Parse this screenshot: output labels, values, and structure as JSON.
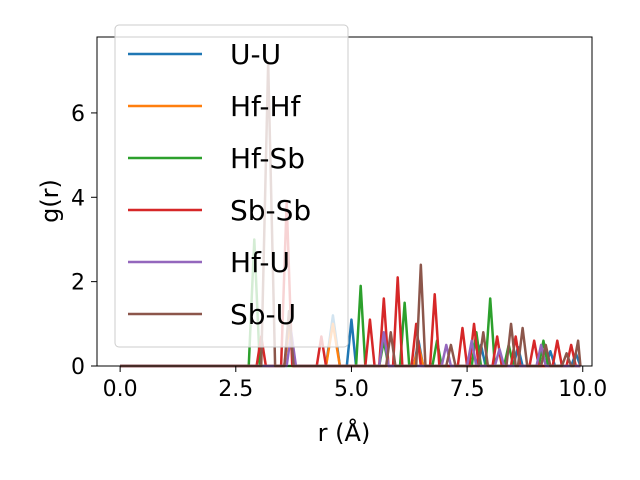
{
  "chart_data": {
    "type": "line",
    "xlabel": "r (Å)",
    "ylabel": "g(r)",
    "xlim": [
      -0.5,
      10.2
    ],
    "ylim": [
      0,
      7.8
    ],
    "xticks": [
      0.0,
      2.5,
      5.0,
      7.5,
      10.0
    ],
    "xtick_labels": [
      "0.0",
      "2.5",
      "5.0",
      "7.5",
      "10.0"
    ],
    "yticks": [
      0,
      2,
      4,
      6
    ],
    "ytick_labels": [
      "0",
      "2",
      "4",
      "6"
    ],
    "grid": false,
    "legend_position": "upper-left",
    "legend_labels": [
      "U-U",
      "Hf-Hf",
      "Hf-Sb",
      "Sb-Sb",
      "Hf-U",
      "Sb-U"
    ],
    "series": [
      {
        "name": "U-U",
        "color": "#1f77b4",
        "points": [
          [
            0,
            0
          ],
          [
            3.55,
            0
          ],
          [
            3.65,
            1.0
          ],
          [
            3.75,
            0
          ],
          [
            4.45,
            0
          ],
          [
            4.6,
            1.2
          ],
          [
            4.75,
            0
          ],
          [
            4.9,
            0
          ],
          [
            5.0,
            1.1
          ],
          [
            5.1,
            0
          ],
          [
            6.35,
            0
          ],
          [
            6.45,
            0.6
          ],
          [
            6.55,
            0
          ],
          [
            7.7,
            0
          ],
          [
            7.8,
            0.5
          ],
          [
            7.9,
            0
          ],
          [
            8.5,
            0
          ],
          [
            8.6,
            0.45
          ],
          [
            8.7,
            0
          ],
          [
            9.2,
            0
          ],
          [
            9.3,
            0.35
          ],
          [
            9.4,
            0
          ],
          [
            9.75,
            0
          ],
          [
            9.85,
            0.3
          ],
          [
            9.95,
            0
          ]
        ]
      },
      {
        "name": "Hf-Hf",
        "color": "#ff7f0e",
        "points": [
          [
            0,
            0
          ],
          [
            3.55,
            0
          ],
          [
            3.65,
            0.9
          ],
          [
            3.75,
            0
          ],
          [
            4.45,
            0
          ],
          [
            4.6,
            1.0
          ],
          [
            4.75,
            0
          ],
          [
            6.35,
            0
          ],
          [
            6.45,
            0.5
          ],
          [
            6.55,
            0
          ],
          [
            9.95,
            0
          ]
        ]
      },
      {
        "name": "Hf-Sb",
        "color": "#2ca02c",
        "points": [
          [
            0,
            0
          ],
          [
            2.78,
            0
          ],
          [
            2.9,
            3.0
          ],
          [
            3.02,
            0
          ],
          [
            5.1,
            0
          ],
          [
            5.2,
            1.9
          ],
          [
            5.3,
            0
          ],
          [
            5.6,
            0
          ],
          [
            5.7,
            0.6
          ],
          [
            5.8,
            0
          ],
          [
            6.05,
            0
          ],
          [
            6.15,
            1.5
          ],
          [
            6.25,
            0
          ],
          [
            6.75,
            0
          ],
          [
            6.85,
            0.6
          ],
          [
            6.95,
            0
          ],
          [
            7.6,
            0
          ],
          [
            7.7,
            0.8
          ],
          [
            7.8,
            0
          ],
          [
            7.9,
            0
          ],
          [
            8.0,
            1.6
          ],
          [
            8.1,
            0
          ],
          [
            8.3,
            0
          ],
          [
            8.4,
            0.5
          ],
          [
            8.5,
            0
          ],
          [
            9.05,
            0
          ],
          [
            9.15,
            0.6
          ],
          [
            9.25,
            0
          ],
          [
            9.95,
            0
          ]
        ]
      },
      {
        "name": "Sb-Sb",
        "color": "#d62728",
        "points": [
          [
            0,
            0
          ],
          [
            2.95,
            0
          ],
          [
            3.05,
            0.7
          ],
          [
            3.15,
            0
          ],
          [
            3.48,
            0
          ],
          [
            3.6,
            3.9
          ],
          [
            3.72,
            0
          ],
          [
            4.25,
            0
          ],
          [
            4.35,
            0.7
          ],
          [
            4.45,
            0
          ],
          [
            5.3,
            0
          ],
          [
            5.4,
            1.1
          ],
          [
            5.5,
            0
          ],
          [
            5.6,
            0
          ],
          [
            5.7,
            1.6
          ],
          [
            5.8,
            0
          ],
          [
            5.9,
            0
          ],
          [
            6.0,
            2.1
          ],
          [
            6.1,
            0
          ],
          [
            6.3,
            0
          ],
          [
            6.4,
            1.0
          ],
          [
            6.5,
            0
          ],
          [
            6.7,
            0
          ],
          [
            6.8,
            1.7
          ],
          [
            6.9,
            0
          ],
          [
            7.3,
            0
          ],
          [
            7.4,
            0.9
          ],
          [
            7.5,
            0
          ],
          [
            7.55,
            0
          ],
          [
            7.65,
            1.0
          ],
          [
            7.75,
            0
          ],
          [
            8.05,
            0
          ],
          [
            8.15,
            0.7
          ],
          [
            8.25,
            0
          ],
          [
            8.45,
            0
          ],
          [
            8.55,
            0.7
          ],
          [
            8.65,
            0
          ],
          [
            8.85,
            0
          ],
          [
            8.95,
            0.6
          ],
          [
            9.05,
            0
          ],
          [
            9.35,
            0
          ],
          [
            9.45,
            0.6
          ],
          [
            9.55,
            0
          ],
          [
            9.65,
            0
          ],
          [
            9.75,
            0.5
          ],
          [
            9.85,
            0
          ],
          [
            9.95,
            0
          ]
        ]
      },
      {
        "name": "Hf-U",
        "color": "#9467bd",
        "points": [
          [
            0,
            0
          ],
          [
            3.6,
            0
          ],
          [
            3.7,
            0.8
          ],
          [
            3.8,
            0
          ],
          [
            5.6,
            0
          ],
          [
            5.7,
            0.8
          ],
          [
            5.8,
            0
          ],
          [
            6.95,
            0
          ],
          [
            7.05,
            0.5
          ],
          [
            7.15,
            0
          ],
          [
            7.5,
            0
          ],
          [
            7.6,
            0.6
          ],
          [
            7.7,
            0
          ],
          [
            8.1,
            0
          ],
          [
            8.2,
            0.4
          ],
          [
            8.3,
            0
          ],
          [
            9.0,
            0
          ],
          [
            9.1,
            0.5
          ],
          [
            9.2,
            0
          ],
          [
            9.95,
            0
          ]
        ]
      },
      {
        "name": "Sb-U",
        "color": "#8c564b",
        "points": [
          [
            0,
            0
          ],
          [
            3.05,
            0
          ],
          [
            3.2,
            7.2
          ],
          [
            3.35,
            0
          ],
          [
            3.55,
            0
          ],
          [
            3.65,
            1.3
          ],
          [
            3.75,
            0
          ],
          [
            5.75,
            0
          ],
          [
            5.85,
            0.8
          ],
          [
            5.95,
            0
          ],
          [
            6.4,
            0
          ],
          [
            6.5,
            2.4
          ],
          [
            6.6,
            0
          ],
          [
            7.05,
            0
          ],
          [
            7.15,
            0.5
          ],
          [
            7.25,
            0
          ],
          [
            7.75,
            0
          ],
          [
            7.85,
            0.8
          ],
          [
            7.95,
            0
          ],
          [
            8.35,
            0
          ],
          [
            8.45,
            1.0
          ],
          [
            8.55,
            0
          ],
          [
            8.6,
            0
          ],
          [
            8.7,
            0.9
          ],
          [
            8.8,
            0
          ],
          [
            9.1,
            0
          ],
          [
            9.2,
            0.5
          ],
          [
            9.3,
            0
          ],
          [
            9.55,
            0
          ],
          [
            9.65,
            0.3
          ],
          [
            9.75,
            0
          ],
          [
            9.8,
            0
          ],
          [
            9.9,
            0.6
          ],
          [
            9.95,
            0
          ]
        ]
      }
    ]
  }
}
